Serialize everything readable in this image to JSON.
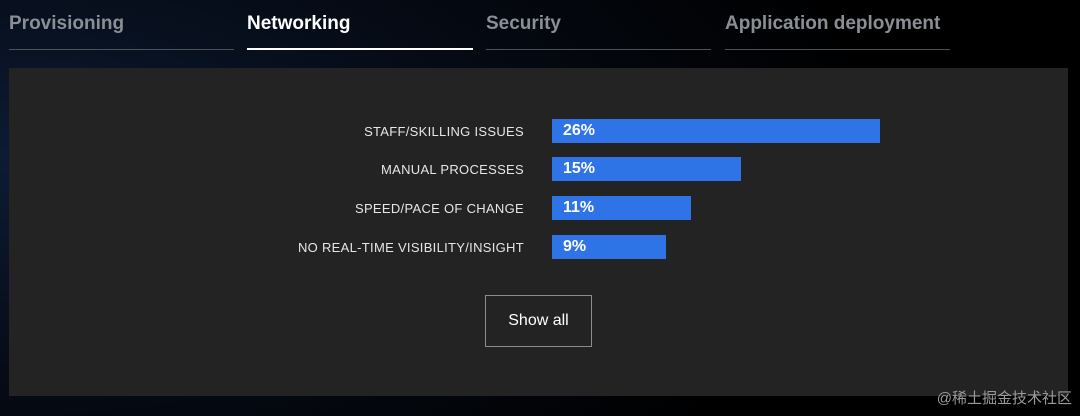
{
  "tabs": [
    {
      "label": "Provisioning",
      "active": false
    },
    {
      "label": "Networking",
      "active": true
    },
    {
      "label": "Security",
      "active": false
    },
    {
      "label": "Application deployment",
      "active": false
    }
  ],
  "bars": [
    {
      "label": "STAFF/SKILLING ISSUES",
      "value_text": "26%",
      "value": 26
    },
    {
      "label": "MANUAL PROCESSES",
      "value_text": "15%",
      "value": 15
    },
    {
      "label": "SPEED/PACE OF CHANGE",
      "value_text": "11%",
      "value": 11
    },
    {
      "label": "NO REAL-TIME VISIBILITY/INSIGHT",
      "value_text": "9%",
      "value": 9
    }
  ],
  "show_all_label": "Show all",
  "watermark": "@稀土掘金技术社区",
  "colors": {
    "bar": "#2f74e6",
    "panel": "#232323",
    "active_tab_text": "#ffffff",
    "inactive_tab_text": "#8a8e95"
  }
}
